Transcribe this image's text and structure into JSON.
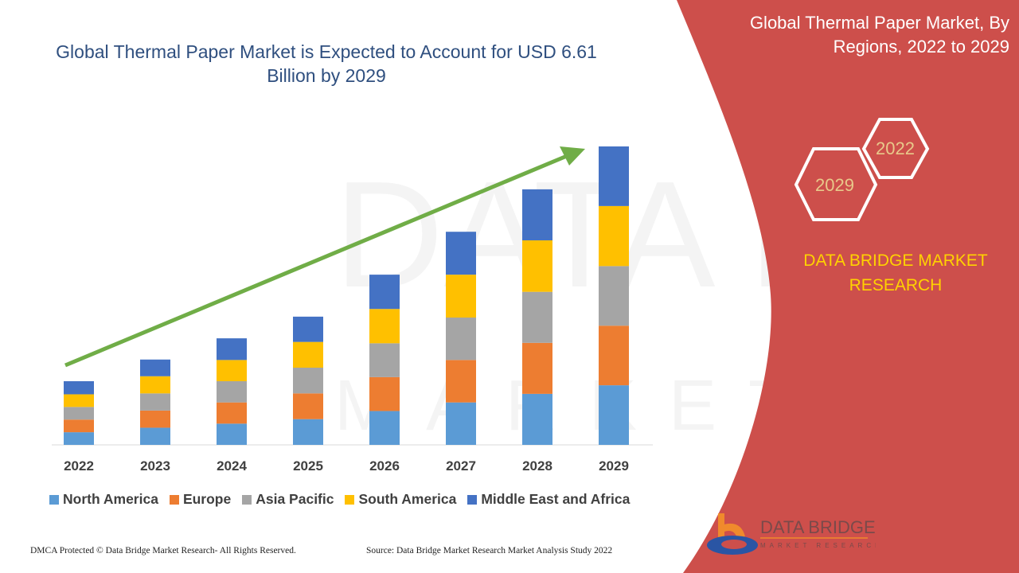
{
  "title": "Global Thermal Paper Market is Expected to Account for USD 6.61 Billion by 2029",
  "side_panel": {
    "title": "Global Thermal Paper Market, By Regions, 2022 to 2029",
    "hex_labels": [
      "2022",
      "2029"
    ],
    "brand": "DATA BRIDGE MARKET RESEARCH",
    "panel_color": "#cd4f4b"
  },
  "footer": {
    "left": "DMCA Protected © Data Bridge Market Research- All Rights Reserved.",
    "right": "Source: Data Bridge Market Research Market Analysis Study 2022"
  },
  "logo_text": "DATA BRIDGE MARKET RESEARCH",
  "chart_data": {
    "type": "bar",
    "stacked": true,
    "categories": [
      "2022",
      "2023",
      "2024",
      "2025",
      "2026",
      "2027",
      "2028",
      "2029"
    ],
    "series": [
      {
        "name": "North America",
        "color": "#5b9bd5",
        "values": [
          0.28,
          0.38,
          0.47,
          0.57,
          0.75,
          0.94,
          1.13,
          1.32
        ]
      },
      {
        "name": "Europe",
        "color": "#ed7d31",
        "values": [
          0.28,
          0.38,
          0.47,
          0.57,
          0.75,
          0.94,
          1.13,
          1.32
        ]
      },
      {
        "name": "Asia Pacific",
        "color": "#a5a5a5",
        "values": [
          0.28,
          0.38,
          0.47,
          0.57,
          0.75,
          0.94,
          1.13,
          1.32
        ]
      },
      {
        "name": "South America",
        "color": "#ffc000",
        "values": [
          0.28,
          0.38,
          0.47,
          0.57,
          0.76,
          0.95,
          1.14,
          1.33
        ]
      },
      {
        "name": "Middle East and Africa",
        "color": "#4472c4",
        "values": [
          0.29,
          0.37,
          0.48,
          0.56,
          0.76,
          0.95,
          1.13,
          1.32
        ]
      }
    ],
    "ylim": [
      0,
      6.61
    ],
    "grid": false,
    "y_axis_visible": false,
    "legend": "bottom",
    "trend_arrow_color": "#70ad47"
  }
}
